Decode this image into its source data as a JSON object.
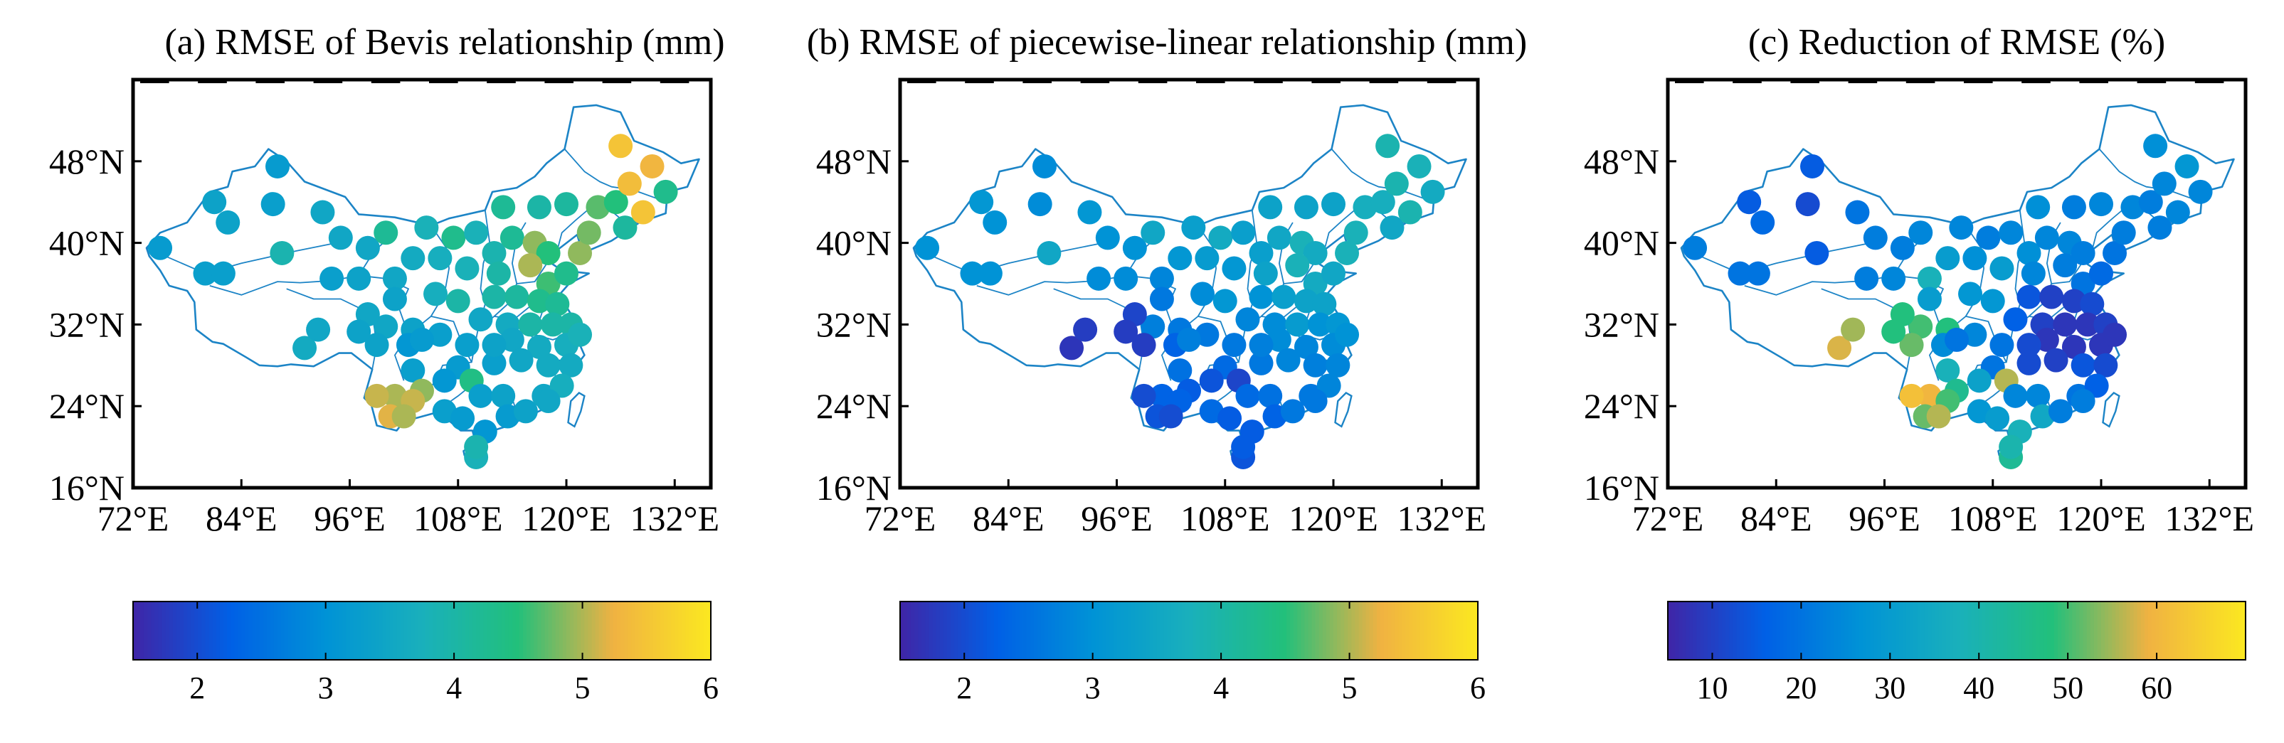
{
  "panels": [
    {
      "title": "(a) RMSE of Bevis relationship (mm)",
      "colorbar": {
        "min": 1.5,
        "max": 6,
        "ticks": [
          "2",
          "3",
          "4",
          "5",
          "6"
        ],
        "tick_values": [
          2,
          3,
          4,
          5,
          6
        ]
      }
    },
    {
      "title": "(b) RMSE of piecewise-linear relationship (mm)",
      "colorbar": {
        "min": 1.5,
        "max": 6,
        "ticks": [
          "2",
          "3",
          "4",
          "5",
          "6"
        ],
        "tick_values": [
          2,
          3,
          4,
          5,
          6
        ]
      }
    },
    {
      "title": "(c) Reduction of RMSE (%)",
      "colorbar": {
        "min": 5,
        "max": 70,
        "ticks": [
          "10",
          "20",
          "30",
          "40",
          "50",
          "60"
        ],
        "tick_values": [
          10,
          20,
          30,
          40,
          50,
          60
        ]
      }
    }
  ],
  "map_axes": {
    "lon_range": [
      72,
      136
    ],
    "lat_range": [
      16,
      56
    ],
    "lon_ticks": [
      "72°E",
      "84°E",
      "96°E",
      "108°E",
      "120°E",
      "132°E"
    ],
    "lon_tick_values": [
      72,
      84,
      96,
      108,
      120,
      132
    ],
    "lat_ticks": [
      "16°N",
      "24°N",
      "32°N",
      "40°N",
      "48°N"
    ],
    "lat_tick_values": [
      16,
      24,
      32,
      40,
      48
    ]
  },
  "colors": {
    "colormap": [
      "#3e26a8",
      "#0060e6",
      "#0093d6",
      "#19b0bc",
      "#22c07b",
      "#f0b242",
      "#fbe721"
    ],
    "boundary": "#1c84c6"
  },
  "chart_data": {
    "type": "scatter",
    "stations": [
      {
        "lon": 75,
        "lat": 39.5,
        "a": 3.2,
        "b": 3.0,
        "c": 22
      },
      {
        "lon": 80,
        "lat": 37,
        "a": 3.3,
        "b": 3.0,
        "c": 20
      },
      {
        "lon": 82,
        "lat": 37,
        "a": 3.3,
        "b": 3.0,
        "c": 20
      },
      {
        "lon": 81,
        "lat": 44,
        "a": 3.4,
        "b": 3.1,
        "c": 15
      },
      {
        "lon": 82.5,
        "lat": 42,
        "a": 3.4,
        "b": 3.0,
        "c": 18
      },
      {
        "lon": 87.5,
        "lat": 43.8,
        "a": 3.3,
        "b": 2.9,
        "c": 12
      },
      {
        "lon": 88,
        "lat": 47.5,
        "a": 3.2,
        "b": 2.9,
        "c": 15
      },
      {
        "lon": 88.5,
        "lat": 39,
        "a": 3.9,
        "b": 3.5,
        "c": 15
      },
      {
        "lon": 93,
        "lat": 43,
        "a": 3.5,
        "b": 3.1,
        "c": 20
      },
      {
        "lon": 95,
        "lat": 40.5,
        "a": 3.5,
        "b": 3.0,
        "c": 22
      },
      {
        "lon": 94,
        "lat": 36.5,
        "a": 3.3,
        "b": 2.9,
        "c": 22
      },
      {
        "lon": 97,
        "lat": 36.5,
        "a": 3.4,
        "b": 2.9,
        "c": 24
      },
      {
        "lon": 98,
        "lat": 39.5,
        "a": 3.5,
        "b": 3.0,
        "c": 22
      },
      {
        "lon": 100,
        "lat": 41,
        "a": 4.2,
        "b": 3.5,
        "c": 24
      },
      {
        "lon": 101,
        "lat": 36.5,
        "a": 3.5,
        "b": 2.8,
        "c": 38
      },
      {
        "lon": 103,
        "lat": 38.5,
        "a": 3.6,
        "b": 3.1,
        "c": 30
      },
      {
        "lon": 104.5,
        "lat": 41.5,
        "a": 3.8,
        "b": 3.3,
        "c": 24
      },
      {
        "lon": 106,
        "lat": 38.5,
        "a": 3.7,
        "b": 3.2,
        "c": 26
      },
      {
        "lon": 107.5,
        "lat": 40.5,
        "a": 4.3,
        "b": 3.6,
        "c": 22
      },
      {
        "lon": 110,
        "lat": 41,
        "a": 3.8,
        "b": 3.3,
        "c": 24
      },
      {
        "lon": 109,
        "lat": 37.5,
        "a": 3.8,
        "b": 3.1,
        "c": 30
      },
      {
        "lon": 112,
        "lat": 39,
        "a": 3.9,
        "b": 3.3,
        "c": 26
      },
      {
        "lon": 112.5,
        "lat": 37,
        "a": 4.0,
        "b": 3.4,
        "c": 24
      },
      {
        "lon": 114,
        "lat": 40.5,
        "a": 4.2,
        "b": 3.5,
        "c": 24
      },
      {
        "lon": 116.5,
        "lat": 40,
        "a": 4.9,
        "b": 3.8,
        "c": 24
      },
      {
        "lon": 118,
        "lat": 39,
        "a": 4.5,
        "b": 3.6,
        "c": 22
      },
      {
        "lon": 116,
        "lat": 37.8,
        "a": 5.0,
        "b": 3.8,
        "c": 22
      },
      {
        "lon": 118,
        "lat": 36,
        "a": 4.6,
        "b": 3.6,
        "c": 20
      },
      {
        "lon": 120,
        "lat": 37,
        "a": 4.3,
        "b": 3.5,
        "c": 18
      },
      {
        "lon": 121.5,
        "lat": 39,
        "a": 4.9,
        "b": 3.8,
        "c": 20
      },
      {
        "lon": 122.5,
        "lat": 41,
        "a": 4.8,
        "b": 3.8,
        "c": 22
      },
      {
        "lon": 123.5,
        "lat": 43.5,
        "a": 4.7,
        "b": 3.7,
        "c": 24
      },
      {
        "lon": 125.5,
        "lat": 44,
        "a": 4.5,
        "b": 3.7,
        "c": 22
      },
      {
        "lon": 126.5,
        "lat": 41.5,
        "a": 4.1,
        "b": 3.5,
        "c": 22
      },
      {
        "lon": 127,
        "lat": 45.8,
        "a": 5.4,
        "b": 3.9,
        "c": 24
      },
      {
        "lon": 128.5,
        "lat": 43,
        "a": 5.5,
        "b": 3.9,
        "c": 24
      },
      {
        "lon": 126,
        "lat": 49.5,
        "a": 5.5,
        "b": 3.9,
        "c": 26
      },
      {
        "lon": 129.5,
        "lat": 47.5,
        "a": 5.3,
        "b": 3.8,
        "c": 28
      },
      {
        "lon": 131,
        "lat": 45,
        "a": 4.3,
        "b": 3.6,
        "c": 24
      },
      {
        "lon": 120,
        "lat": 43.8,
        "a": 4.1,
        "b": 3.4,
        "c": 24
      },
      {
        "lon": 117,
        "lat": 43.5,
        "a": 4.0,
        "b": 3.4,
        "c": 22
      },
      {
        "lon": 113,
        "lat": 43.5,
        "a": 4.2,
        "b": 3.4,
        "c": 26
      },
      {
        "lon": 100,
        "lat": 31.8,
        "a": 3.5,
        "b": 2.7,
        "c": 50
      },
      {
        "lon": 103,
        "lat": 31.5,
        "a": 3.4,
        "b": 2.6,
        "c": 48
      },
      {
        "lon": 99,
        "lat": 30,
        "a": 3.4,
        "b": 1.8,
        "c": 52
      },
      {
        "lon": 91,
        "lat": 29.7,
        "a": 3.6,
        "b": 1.7,
        "c": 58
      },
      {
        "lon": 92.5,
        "lat": 31.5,
        "a": 3.5,
        "b": 1.8,
        "c": 55
      },
      {
        "lon": 98,
        "lat": 33,
        "a": 3.5,
        "b": 1.9,
        "c": 48
      },
      {
        "lon": 97,
        "lat": 31.3,
        "a": 3.4,
        "b": 1.8,
        "c": 48
      },
      {
        "lon": 101,
        "lat": 34.5,
        "a": 3.4,
        "b": 2.6,
        "c": 30
      },
      {
        "lon": 102.5,
        "lat": 30,
        "a": 3.1,
        "b": 2.3,
        "c": 25
      },
      {
        "lon": 105.5,
        "lat": 35,
        "a": 3.7,
        "b": 2.9,
        "c": 28
      },
      {
        "lon": 108,
        "lat": 34.3,
        "a": 4.0,
        "b": 3.1,
        "c": 28
      },
      {
        "lon": 106,
        "lat": 31,
        "a": 3.3,
        "b": 2.6,
        "c": 24
      },
      {
        "lon": 104,
        "lat": 30.5,
        "a": 3.2,
        "b": 2.7,
        "c": 20
      },
      {
        "lon": 109,
        "lat": 30,
        "a": 3.3,
        "b": 2.6,
        "c": 20
      },
      {
        "lon": 110.5,
        "lat": 32.5,
        "a": 3.5,
        "b": 2.8,
        "c": 16
      },
      {
        "lon": 112,
        "lat": 34.7,
        "a": 4.0,
        "b": 3.0,
        "c": 14
      },
      {
        "lon": 113.5,
        "lat": 32,
        "a": 3.6,
        "b": 2.9,
        "c": 10
      },
      {
        "lon": 114.5,
        "lat": 34.7,
        "a": 4.1,
        "b": 3.3,
        "c": 10
      },
      {
        "lon": 117,
        "lat": 34.3,
        "a": 4.3,
        "b": 3.4,
        "c": 10
      },
      {
        "lon": 116,
        "lat": 32,
        "a": 4.0,
        "b": 3.2,
        "c": 8
      },
      {
        "lon": 119,
        "lat": 34,
        "a": 4.2,
        "b": 3.4,
        "c": 12
      },
      {
        "lon": 118.5,
        "lat": 32,
        "a": 4.0,
        "b": 3.0,
        "c": 8
      },
      {
        "lon": 120.5,
        "lat": 32,
        "a": 4.0,
        "b": 3.1,
        "c": 10
      },
      {
        "lon": 120,
        "lat": 30,
        "a": 3.7,
        "b": 2.9,
        "c": 8
      },
      {
        "lon": 121.5,
        "lat": 31,
        "a": 3.8,
        "b": 3.0,
        "c": 8
      },
      {
        "lon": 114,
        "lat": 30.5,
        "a": 3.5,
        "b": 2.9,
        "c": 8
      },
      {
        "lon": 117,
        "lat": 29.8,
        "a": 3.6,
        "b": 2.8,
        "c": 8
      },
      {
        "lon": 112,
        "lat": 28.2,
        "a": 3.3,
        "b": 2.6,
        "c": 12
      },
      {
        "lon": 115,
        "lat": 28.5,
        "a": 3.5,
        "b": 2.8,
        "c": 10
      },
      {
        "lon": 118,
        "lat": 28,
        "a": 3.6,
        "b": 2.7,
        "c": 14
      },
      {
        "lon": 120.5,
        "lat": 28,
        "a": 3.6,
        "b": 2.8,
        "c": 12
      },
      {
        "lon": 108,
        "lat": 27.8,
        "a": 3.2,
        "b": 2.4,
        "c": 20
      },
      {
        "lon": 106.5,
        "lat": 26.5,
        "a": 3.1,
        "b": 2.1,
        "c": 32
      },
      {
        "lon": 103,
        "lat": 27.5,
        "a": 3.3,
        "b": 2.5,
        "c": 38
      },
      {
        "lon": 109.5,
        "lat": 26.5,
        "a": 4.4,
        "b": 1.9,
        "c": 56
      },
      {
        "lon": 104,
        "lat": 25.5,
        "a": 4.9,
        "b": 2.2,
        "c": 45
      },
      {
        "lon": 101,
        "lat": 25,
        "a": 5.0,
        "b": 2.3,
        "c": 60
      },
      {
        "lon": 103,
        "lat": 24.5,
        "a": 5.1,
        "b": 2.3,
        "c": 50
      },
      {
        "lon": 99,
        "lat": 25,
        "a": 5.1,
        "b": 2.0,
        "c": 62
      },
      {
        "lon": 100.5,
        "lat": 23,
        "a": 5.2,
        "b": 2.1,
        "c": 52
      },
      {
        "lon": 102,
        "lat": 23,
        "a": 5.0,
        "b": 2.0,
        "c": 56
      },
      {
        "lon": 106.5,
        "lat": 23.5,
        "a": 3.3,
        "b": 2.4,
        "c": 28
      },
      {
        "lon": 108.5,
        "lat": 22.8,
        "a": 3.2,
        "b": 2.2,
        "c": 30
      },
      {
        "lon": 110.5,
        "lat": 25,
        "a": 3.3,
        "b": 2.4,
        "c": 24
      },
      {
        "lon": 113,
        "lat": 25,
        "a": 3.4,
        "b": 2.5,
        "c": 24
      },
      {
        "lon": 113.5,
        "lat": 23,
        "a": 3.2,
        "b": 2.3,
        "c": 34
      },
      {
        "lon": 111,
        "lat": 21.5,
        "a": 3.1,
        "b": 2.2,
        "c": 38
      },
      {
        "lon": 115.5,
        "lat": 23.5,
        "a": 3.4,
        "b": 2.6,
        "c": 22
      },
      {
        "lon": 117.5,
        "lat": 25,
        "a": 3.5,
        "b": 2.6,
        "c": 20
      },
      {
        "lon": 119.5,
        "lat": 26,
        "a": 3.7,
        "b": 2.8,
        "c": 16
      },
      {
        "lon": 118,
        "lat": 24.5,
        "a": 3.5,
        "b": 2.6,
        "c": 22
      },
      {
        "lon": 110,
        "lat": 19,
        "a": 3.8,
        "b": 2.1,
        "c": 44
      },
      {
        "lon": 110,
        "lat": 20,
        "a": 3.9,
        "b": 2.2,
        "c": 40
      },
      {
        "lon": 112,
        "lat": 30,
        "a": 3.4,
        "b": 2.7,
        "c": 12
      }
    ]
  }
}
